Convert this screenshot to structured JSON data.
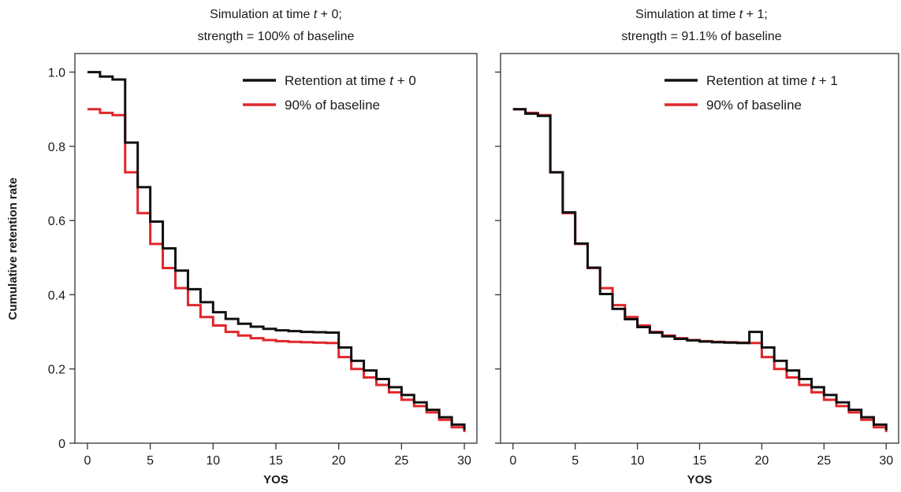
{
  "figure": {
    "y_axis_title": "Cumulative retention rate"
  },
  "chart_data": [
    {
      "type": "line",
      "step": "post",
      "title_line1": "Simulation at time t + 0;",
      "title_line2": "strength = 100% of baseline",
      "title_parts": [
        "Simulation at time ",
        "t",
        " + 0;"
      ],
      "xlabel": "YOS",
      "ylabel": "Cumulative retention rate",
      "xlim": [
        -1,
        31
      ],
      "ylim": [
        0,
        1.05
      ],
      "xticks": [
        0,
        5,
        10,
        15,
        20,
        25,
        30
      ],
      "yticks": [
        0,
        0.2,
        0.4,
        0.6,
        0.8,
        1.0
      ],
      "ytick_labels": [
        "0",
        "0.2",
        "0.4",
        "0.6",
        "0.8",
        "1.0"
      ],
      "show_y_tick_labels": true,
      "grid": false,
      "legend_position": "top-right",
      "x": [
        0,
        1,
        2,
        3,
        4,
        5,
        6,
        7,
        8,
        9,
        10,
        11,
        12,
        13,
        14,
        15,
        16,
        17,
        18,
        19,
        20,
        21,
        22,
        23,
        24,
        25,
        26,
        27,
        28,
        29,
        30
      ],
      "series": [
        {
          "name": "90% of baseline",
          "legend_parts": [
            "90% of baseline"
          ],
          "color": "#e0262b",
          "values": [
            0.9,
            0.89,
            0.884,
            0.73,
            0.62,
            0.537,
            0.472,
            0.418,
            0.372,
            0.34,
            0.317,
            0.3,
            0.29,
            0.283,
            0.278,
            0.275,
            0.273,
            0.272,
            0.271,
            0.27,
            0.232,
            0.2,
            0.177,
            0.157,
            0.137,
            0.117,
            0.1,
            0.083,
            0.063,
            0.043,
            0.03
          ]
        },
        {
          "name": "Retention at time t + 0",
          "legend_parts": [
            "Retention at time ",
            "t",
            " + 0"
          ],
          "color": "#111111",
          "values": [
            1.0,
            0.988,
            0.98,
            0.81,
            0.69,
            0.597,
            0.525,
            0.465,
            0.415,
            0.38,
            0.353,
            0.335,
            0.322,
            0.314,
            0.308,
            0.304,
            0.302,
            0.3,
            0.299,
            0.298,
            0.258,
            0.222,
            0.196,
            0.173,
            0.151,
            0.13,
            0.11,
            0.09,
            0.07,
            0.05,
            0.035
          ]
        }
      ]
    },
    {
      "type": "line",
      "step": "post",
      "title_line1": "Simulation at time t + 1;",
      "title_line2": "strength = 91.1% of baseline",
      "title_parts": [
        "Simulation at time ",
        "t",
        " + 1;"
      ],
      "xlabel": "YOS",
      "ylabel": "",
      "xlim": [
        -1,
        31
      ],
      "ylim": [
        0,
        1.05
      ],
      "xticks": [
        0,
        5,
        10,
        15,
        20,
        25,
        30
      ],
      "yticks": [
        0,
        0.2,
        0.4,
        0.6,
        0.8,
        1.0
      ],
      "show_y_tick_labels": false,
      "grid": false,
      "legend_position": "top-right",
      "x": [
        0,
        1,
        2,
        3,
        4,
        5,
        6,
        7,
        8,
        9,
        10,
        11,
        12,
        13,
        14,
        15,
        16,
        17,
        18,
        19,
        20,
        21,
        22,
        23,
        24,
        25,
        26,
        27,
        28,
        29,
        30
      ],
      "series": [
        {
          "name": "90% of baseline",
          "legend_parts": [
            "90% of baseline"
          ],
          "color": "#e0262b",
          "values": [
            0.9,
            0.89,
            0.884,
            0.73,
            0.62,
            0.537,
            0.472,
            0.418,
            0.372,
            0.34,
            0.317,
            0.3,
            0.29,
            0.283,
            0.278,
            0.275,
            0.273,
            0.272,
            0.271,
            0.27,
            0.232,
            0.2,
            0.177,
            0.157,
            0.137,
            0.117,
            0.1,
            0.083,
            0.063,
            0.043,
            0.03
          ]
        },
        {
          "name": "Retention at time t + 1",
          "legend_parts": [
            "Retention at time ",
            "t",
            " + 1"
          ],
          "color": "#111111",
          "values": [
            0.9,
            0.888,
            0.882,
            0.73,
            0.622,
            0.538,
            0.473,
            0.402,
            0.362,
            0.334,
            0.313,
            0.298,
            0.288,
            0.281,
            0.277,
            0.274,
            0.272,
            0.271,
            0.27,
            0.3,
            0.258,
            0.222,
            0.196,
            0.173,
            0.151,
            0.13,
            0.11,
            0.09,
            0.07,
            0.05,
            0.035
          ]
        }
      ]
    }
  ]
}
